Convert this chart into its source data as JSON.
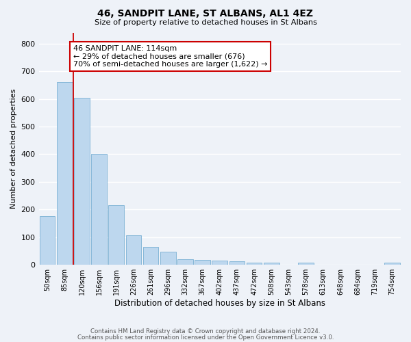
{
  "title": "46, SANDPIT LANE, ST ALBANS, AL1 4EZ",
  "subtitle": "Size of property relative to detached houses in St Albans",
  "xlabel": "Distribution of detached houses by size in St Albans",
  "ylabel": "Number of detached properties",
  "bin_labels": [
    "50sqm",
    "85sqm",
    "120sqm",
    "156sqm",
    "191sqm",
    "226sqm",
    "261sqm",
    "296sqm",
    "332sqm",
    "367sqm",
    "402sqm",
    "437sqm",
    "472sqm",
    "508sqm",
    "543sqm",
    "578sqm",
    "613sqm",
    "648sqm",
    "684sqm",
    "719sqm",
    "754sqm"
  ],
  "bar_heights": [
    175,
    660,
    605,
    400,
    215,
    108,
    65,
    48,
    20,
    17,
    15,
    13,
    9,
    8,
    1,
    7,
    0,
    0,
    1,
    0,
    7
  ],
  "bar_color": "#bdd7ee",
  "bar_edgecolor": "#7ab0d4",
  "bg_color": "#eef2f8",
  "grid_color": "#ffffff",
  "vline_color": "#cc0000",
  "annotation_text": "46 SANDPIT LANE: 114sqm\n← 29% of detached houses are smaller (676)\n70% of semi-detached houses are larger (1,622) →",
  "annotation_box_color": "#cc0000",
  "ylim": [
    0,
    840
  ],
  "yticks": [
    0,
    100,
    200,
    300,
    400,
    500,
    600,
    700,
    800
  ],
  "footer1": "Contains HM Land Registry data © Crown copyright and database right 2024.",
  "footer2": "Contains public sector information licensed under the Open Government Licence v3.0."
}
